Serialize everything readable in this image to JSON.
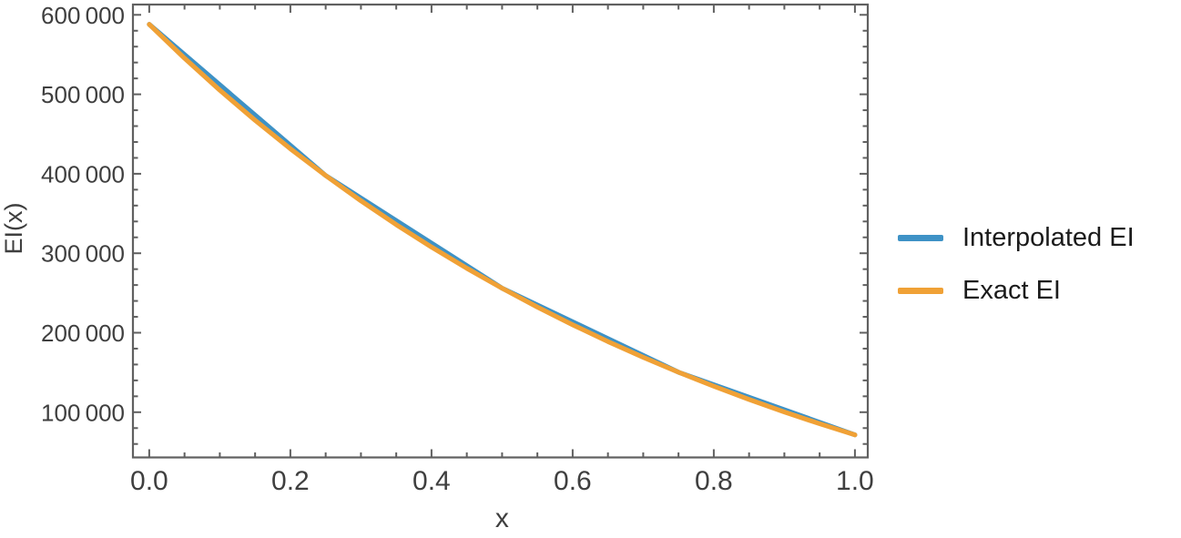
{
  "chart_data": {
    "type": "line",
    "title": "",
    "xlabel": "x",
    "ylabel": "EI(x)",
    "xlim": [
      -0.023,
      1.023
    ],
    "ylim": [
      42000,
      613000
    ],
    "grid": false,
    "frame": true,
    "tick_direction": "in",
    "legend_position": "right-outside",
    "x_tick_values": [
      0,
      0.2,
      0.4,
      0.6,
      0.8,
      1.0
    ],
    "x_tick_labels": [
      "0.0",
      "0.2",
      "0.4",
      "0.6",
      "0.8",
      "1.0"
    ],
    "x_minor_tick_values": [
      0.05,
      0.1,
      0.15,
      0.25,
      0.3,
      0.35,
      0.45,
      0.5,
      0.55,
      0.65,
      0.7,
      0.75,
      0.85,
      0.9,
      0.95
    ],
    "y_tick_values": [
      100000,
      200000,
      300000,
      400000,
      500000,
      600000
    ],
    "y_tick_labels": [
      "100 000",
      "200 000",
      "300 000",
      "400 000",
      "500 000",
      "600 000"
    ],
    "y_minor_tick_values": [
      60000,
      80000,
      120000,
      140000,
      160000,
      180000,
      220000,
      240000,
      260000,
      280000,
      320000,
      340000,
      360000,
      380000,
      420000,
      440000,
      460000,
      480000,
      520000,
      540000,
      560000,
      580000
    ],
    "series": [
      {
        "name": "Interpolated EI",
        "color": "#3E92C6",
        "style": "piecewise-linear",
        "x": [
          0,
          0.25,
          0.5,
          0.75,
          1.0
        ],
        "y": [
          588000,
          397800,
          256000,
          150300,
          71500
        ]
      },
      {
        "name": "Exact EI",
        "color": "#F0A136",
        "style": "smooth",
        "x": [
          0,
          0.05,
          0.1,
          0.15,
          0.2,
          0.25,
          0.3,
          0.35,
          0.4,
          0.45,
          0.5,
          0.55,
          0.6,
          0.65,
          0.7,
          0.75,
          0.8,
          0.85,
          0.9,
          0.95,
          1.0
        ],
        "y": [
          588000,
          545400,
          505200,
          467300,
          431500,
          397800,
          366000,
          336000,
          307800,
          281100,
          256000,
          232300,
          210000,
          188900,
          169100,
          150300,
          132700,
          116000,
          100300,
          85500,
          71500
        ]
      }
    ]
  },
  "legend": {
    "items": [
      {
        "label": "Interpolated EI",
        "color": "#3E92C6"
      },
      {
        "label": "Exact EI",
        "color": "#F0A136"
      }
    ]
  },
  "style_colors": {
    "frame": "#606060",
    "tick": "#606060",
    "tick_label": "#3f3f3f",
    "axis_label": "#3f3f3f"
  }
}
